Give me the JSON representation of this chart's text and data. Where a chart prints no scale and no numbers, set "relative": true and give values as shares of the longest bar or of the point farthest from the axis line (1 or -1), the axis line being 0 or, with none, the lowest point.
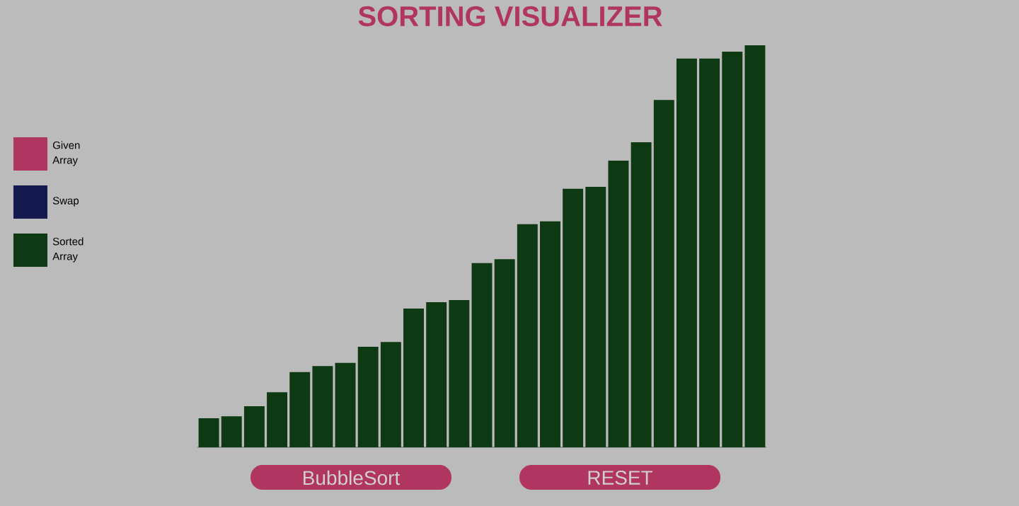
{
  "chart_data": {
    "type": "bar",
    "title": "SORTING VISUALIZER",
    "relative": true,
    "legend": "left",
    "categories": [
      null,
      null,
      null,
      null,
      null,
      null,
      null,
      null,
      null,
      null,
      null,
      null,
      null,
      null,
      null,
      null,
      null,
      null,
      null,
      null,
      null,
      null,
      null,
      null,
      null
    ],
    "series": [
      {
        "name": "Sorted Array",
        "color": "#0d3a13",
        "values": [
          0.072,
          0.077,
          0.102,
          0.137,
          0.187,
          0.202,
          0.21,
          0.25,
          0.262,
          0.345,
          0.361,
          0.366,
          0.458,
          0.468,
          0.555,
          0.562,
          0.643,
          0.648,
          0.713,
          0.759,
          0.864,
          0.967,
          0.967,
          0.984,
          1
        ]
      }
    ],
    "annotations": [
      "Given Array",
      "Swap",
      "BubbleSort",
      "RESET"
    ]
  }
}
